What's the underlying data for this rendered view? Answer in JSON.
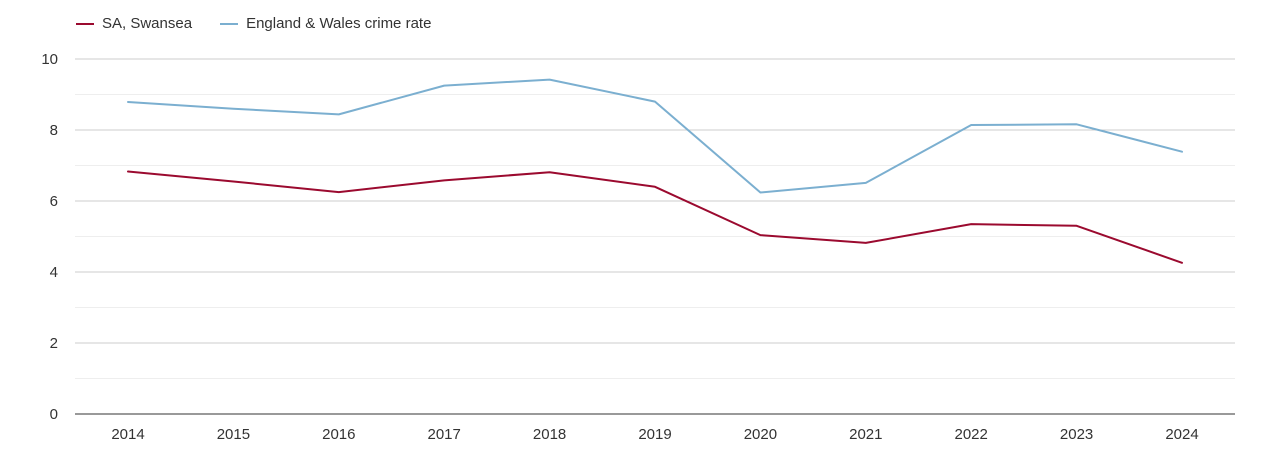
{
  "chart_data": {
    "type": "line",
    "title": "",
    "xlabel": "",
    "ylabel": "",
    "categories": [
      "2014",
      "2015",
      "2016",
      "2017",
      "2018",
      "2019",
      "2020",
      "2021",
      "2022",
      "2023",
      "2024"
    ],
    "ylim": [
      0,
      10
    ],
    "yticks": [
      0,
      2,
      4,
      6,
      8,
      10
    ],
    "grid": true,
    "legend_position": "top-left",
    "series": [
      {
        "name": "SA, Swansea",
        "color": "#9b0a2f",
        "values": [
          6.83,
          6.55,
          6.25,
          6.58,
          6.81,
          6.4,
          5.04,
          4.82,
          5.35,
          5.3,
          4.26
        ]
      },
      {
        "name": "England & Wales crime rate",
        "color": "#7bafd0",
        "values": [
          8.79,
          8.6,
          8.44,
          9.25,
          9.42,
          8.8,
          6.24,
          6.51,
          8.14,
          8.16,
          7.39
        ]
      }
    ]
  }
}
